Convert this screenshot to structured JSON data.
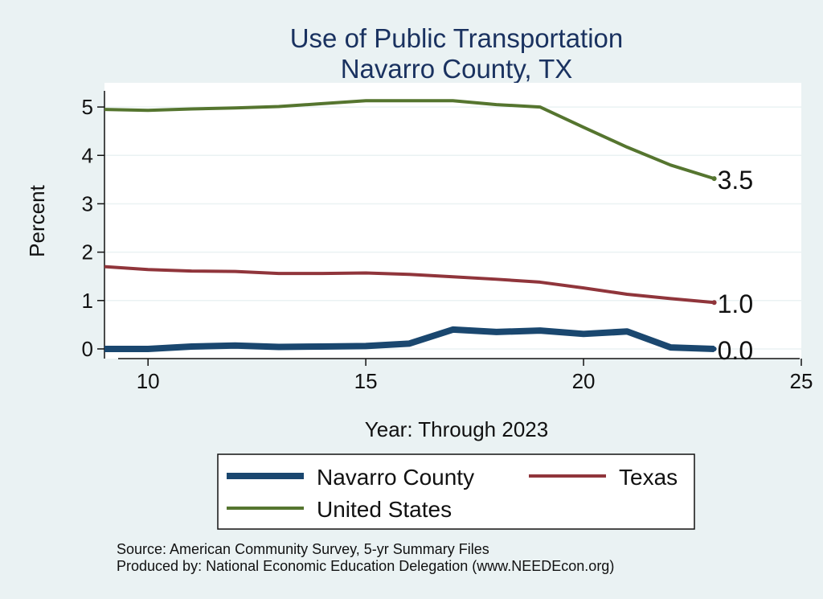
{
  "chart_data": {
    "type": "line",
    "title": "Use of Public Transportation",
    "subtitle": "Navarro County, TX",
    "xlabel": "Year: Through 2023",
    "ylabel": "Percent",
    "xlim": [
      9,
      25
    ],
    "ylim": [
      -0.2,
      5.5
    ],
    "x_ticks": [
      10,
      15,
      20,
      25
    ],
    "y_ticks": [
      0,
      1,
      2,
      3,
      4,
      5
    ],
    "grid": "horizontal",
    "legend_position": "bottom",
    "x": [
      9,
      10,
      11,
      12,
      13,
      14,
      15,
      16,
      17,
      18,
      19,
      20,
      21,
      22,
      23
    ],
    "series": [
      {
        "name": "Navarro County",
        "color": "#1a476f",
        "values": [
          0.0,
          0.0,
          0.05,
          0.07,
          0.04,
          0.05,
          0.06,
          0.11,
          0.4,
          0.35,
          0.38,
          0.31,
          0.36,
          0.03,
          0.0
        ],
        "end_label": "0.0"
      },
      {
        "name": "Texas",
        "color": "#90353b",
        "values": [
          1.7,
          1.64,
          1.61,
          1.6,
          1.56,
          1.56,
          1.57,
          1.54,
          1.49,
          1.44,
          1.38,
          1.26,
          1.13,
          1.04,
          0.96
        ],
        "end_label": "1.0"
      },
      {
        "name": "United States",
        "color": "#55752f",
        "values": [
          4.95,
          4.93,
          4.96,
          4.98,
          5.01,
          5.07,
          5.13,
          5.13,
          5.13,
          5.05,
          5.0,
          4.58,
          4.17,
          3.8,
          3.52
        ],
        "end_label": "3.5"
      }
    ],
    "source_lines": [
      "Source: American Community Survey, 5-yr Summary Files",
      "Produced by: National Economic Education Delegation (www.NEEDEcon.org)"
    ]
  }
}
